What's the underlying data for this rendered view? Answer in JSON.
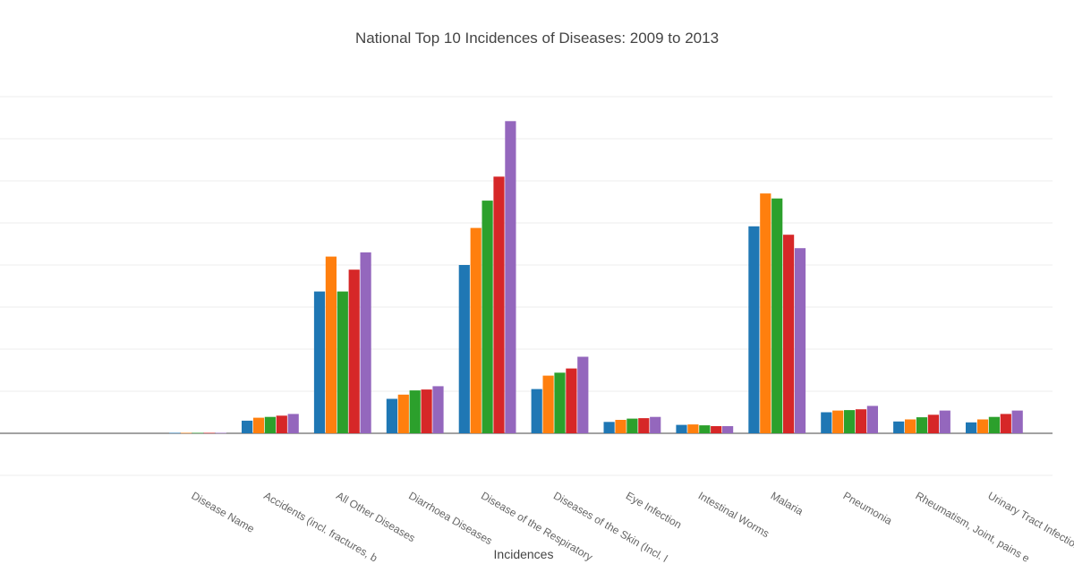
{
  "chart_data": {
    "type": "bar",
    "title": "National Top 10 Incidences of Diseases: 2009 to 2013",
    "xlabel": "Incidences",
    "ylabel": "",
    "grid": true,
    "legend": "none",
    "ylim": [
      -1,
      8
    ],
    "categories": [
      "Disease Name",
      "Accidents (incl. fractures, b",
      "All Other Diseases",
      "Diarrhoea Diseases",
      "Disease of the Respiratory",
      "Diseases of the Skin (Incl. l",
      "Eye Infection",
      "Intestinal Worms",
      "Malaria",
      "Pneumonia",
      "Rheumatism, Joint, pains e",
      "Urinary Tract Infection"
    ],
    "colors": [
      "#1f77b4",
      "#ff7f0e",
      "#2ca02c",
      "#d62728",
      "#9467bd"
    ],
    "series": [
      {
        "values": [
          0.01,
          0.3,
          3.37,
          0.82,
          4.0,
          1.05,
          0.27,
          0.2,
          4.92,
          0.5,
          0.28,
          0.26
        ]
      },
      {
        "values": [
          0.01,
          0.37,
          4.2,
          0.92,
          4.88,
          1.37,
          0.32,
          0.21,
          5.7,
          0.54,
          0.33,
          0.33
        ]
      },
      {
        "values": [
          0.01,
          0.39,
          3.37,
          1.02,
          5.53,
          1.44,
          0.35,
          0.19,
          5.58,
          0.55,
          0.38,
          0.39
        ]
      },
      {
        "values": [
          0.01,
          0.42,
          3.89,
          1.04,
          6.1,
          1.54,
          0.36,
          0.17,
          4.72,
          0.57,
          0.44,
          0.46
        ]
      },
      {
        "values": [
          0.01,
          0.46,
          4.3,
          1.12,
          7.42,
          1.82,
          0.39,
          0.17,
          4.4,
          0.65,
          0.54,
          0.54
        ]
      }
    ]
  }
}
